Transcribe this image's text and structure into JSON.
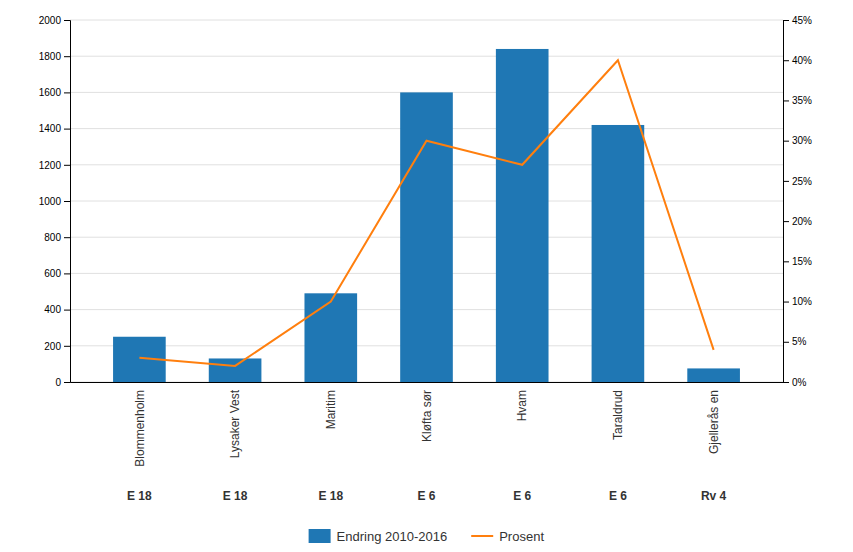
{
  "chart_data": {
    "type": "bar",
    "categories": [
      "Blommenholm",
      "Lysaker Vest",
      "Maritim",
      "Kløfta sør",
      "Hvam",
      "Taraldrud",
      "Gjellerås en"
    ],
    "annotations": [
      {
        "text": "E 18",
        "x": "Blommenholm"
      },
      {
        "text": "E 18",
        "x": "Lysaker Vest"
      },
      {
        "text": "E 18",
        "x": "Maritim"
      },
      {
        "text": "E 6",
        "x": "Kløfta sør"
      },
      {
        "text": "E 6",
        "x": "Hvam"
      },
      {
        "text": "E 6",
        "x": "Taraldrud"
      },
      {
        "text": "Rv 4",
        "x": "Gjellerås en"
      }
    ],
    "series": [
      {
        "name": "Endring 2010-2016",
        "type": "bar",
        "values": [
          250,
          130,
          490,
          1600,
          1840,
          1420,
          75
        ]
      },
      {
        "name": "Prosent",
        "type": "line",
        "axis": "y2",
        "values": [
          3.0,
          2.0,
          10.0,
          30.0,
          27.0,
          40.0,
          4.0
        ]
      }
    ],
    "ylim": [
      0,
      2000
    ],
    "yticks": [
      0,
      200,
      400,
      600,
      800,
      1000,
      1200,
      1400,
      1600,
      1800,
      2000
    ],
    "y2lim": [
      0,
      45
    ],
    "y2ticks": [
      {
        "value": 0,
        "label": "0%"
      },
      {
        "value": 5,
        "label": "5%"
      },
      {
        "value": 10,
        "label": "10%"
      },
      {
        "value": 15,
        "label": "15%"
      },
      {
        "value": 20,
        "label": "20%"
      },
      {
        "value": 25,
        "label": "25%"
      },
      {
        "value": 30,
        "label": "30%"
      },
      {
        "value": 35,
        "label": "35%"
      },
      {
        "value": 40,
        "label": "40%"
      },
      {
        "value": 45,
        "label": "45%"
      }
    ],
    "grid": true,
    "legend": "bottom"
  }
}
